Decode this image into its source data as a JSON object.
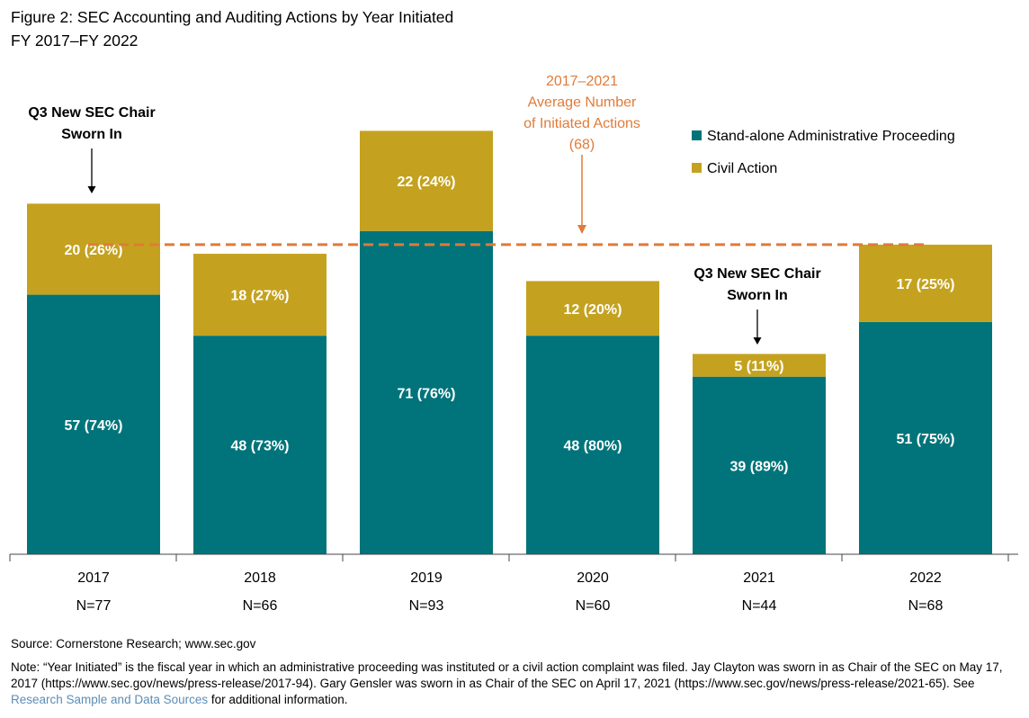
{
  "title_line1": "Figure 2: SEC Accounting and Auditing Actions by Year Initiated",
  "title_line2": "FY 2017–FY 2022",
  "colors": {
    "admin": "#00747A",
    "civil": "#C4A21F",
    "avg_line": "#E07B39",
    "avg_text": "#E07B39",
    "link": "#5B8DB8"
  },
  "chart_data": {
    "type": "bar",
    "stacked": true,
    "categories": [
      "2017",
      "2018",
      "2019",
      "2020",
      "2021",
      "2022"
    ],
    "n_labels": [
      "N=77",
      "N=66",
      "N=93",
      "N=60",
      "N=44",
      "N=68"
    ],
    "series": [
      {
        "name": "Stand-alone Administrative Proceeding",
        "values": [
          57,
          48,
          71,
          48,
          39,
          51
        ],
        "labels": [
          "57 (74%)",
          "48 (73%)",
          "71 (76%)",
          "48 (80%)",
          "39 (89%)",
          "51 (75%)"
        ]
      },
      {
        "name": "Civil Action",
        "values": [
          20,
          18,
          22,
          12,
          5,
          17
        ],
        "labels": [
          "20 (26%)",
          "18 (27%)",
          "22 (24%)",
          "12 (20%)",
          "5 (11%)",
          "17 (25%)"
        ]
      }
    ],
    "average": {
      "value": 68,
      "label_lines": [
        "2017–2021",
        "Average Number",
        "of Initiated Actions",
        "(68)"
      ]
    },
    "annotations": [
      {
        "category": "2017",
        "lines": [
          "Q3 New SEC Chair",
          "Sworn In"
        ]
      },
      {
        "category": "2021",
        "lines": [
          "Q3 New SEC Chair",
          "Sworn In"
        ]
      }
    ],
    "ylim": [
      0,
      100
    ],
    "legend_position": "top-right"
  },
  "source": "Source: Cornerstone Research; www.sec.gov",
  "note": {
    "before_link": "Note: “Year Initiated” is the fiscal year in which an administrative proceeding was instituted or a civil action complaint was filed. Jay Clayton was sworn in as Chair of the SEC on May 17, 2017 (https://www.sec.gov/news/press-release/2017-94). Gary Gensler was sworn in as Chair of the SEC on April 17, 2021 (https://www.sec.gov/news/press-release/2021-65). See ",
    "link": "Research Sample and Data Sources",
    "after_link": " for additional information."
  }
}
